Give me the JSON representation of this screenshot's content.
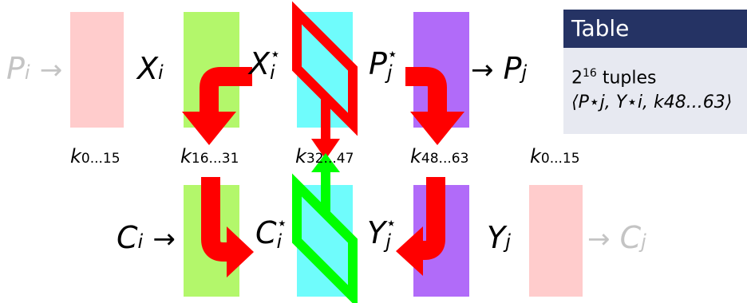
{
  "labels": {
    "p_i": "P",
    "p_i_sub": "i",
    "x_i": "X",
    "x_i_sub": "i",
    "x_i_star": "X",
    "x_i_star_sub": "i",
    "x_i_star_sup": "⋆",
    "p_j_star": "P",
    "p_j_star_sub": "j",
    "p_j_star_sup": "⋆",
    "p_j": "P",
    "p_j_sub": "j",
    "c_i": "C",
    "c_i_sub": "i",
    "c_i_star": "C",
    "c_i_star_sub": "i",
    "c_i_star_sup": "⋆",
    "y_j_star": "Y",
    "y_j_star_sub": "j",
    "y_j_star_sup": "⋆",
    "y_j": "Y",
    "y_j_sub": "j",
    "c_j": "C",
    "c_j_sub": "j",
    "arrow": "→"
  },
  "keys": {
    "k1": "k",
    "k1_sub": "0...15",
    "k2": "k",
    "k2_sub": "16...31",
    "k3": "k",
    "k3_sub": "32...47",
    "k4": "k",
    "k4_sub": "48...63",
    "k5": "k",
    "k5_sub": "0...15"
  },
  "table": {
    "title": "Table",
    "line1_base": "2",
    "line1_exp": "16",
    "line1_text": " tuples",
    "line2": "⟨P⋆j, Y⋆i, k48...63⟩"
  },
  "colors": {
    "pink": "#ffcccc",
    "green": "#b3f76b",
    "cyan": "#6ffcfc",
    "purple": "#b16bf9",
    "red_arrow": "#ff0000",
    "green_arrow": "#00ff00",
    "table_header": "#253364",
    "table_body": "#e7e9f1"
  }
}
